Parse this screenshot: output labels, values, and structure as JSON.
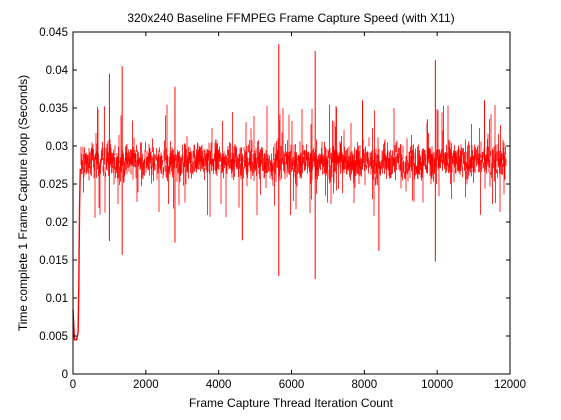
{
  "chart_data": {
    "type": "line",
    "title": "320x240 Baseline FFMPEG Frame Capture Speed (with X11)",
    "xlabel": "Frame Capture Thread Iteration Count",
    "ylabel": "Time complete 1 Frame Capture loop (Seconds)",
    "xlim": [
      0,
      12000
    ],
    "ylim": [
      0,
      0.045
    ],
    "xticks": [
      "0",
      "2000",
      "4000",
      "6000",
      "8000",
      "10000",
      "12000"
    ],
    "xtick_values": [
      0,
      2000,
      4000,
      6000,
      8000,
      10000,
      12000
    ],
    "yticks": [
      "0",
      "0.005",
      "0.01",
      "0.015",
      "0.02",
      "0.025",
      "0.03",
      "0.035",
      "0.04",
      "0.045"
    ],
    "ytick_values": [
      0,
      0.005,
      0.01,
      0.015,
      0.02,
      0.025,
      0.03,
      0.035,
      0.04,
      0.045
    ],
    "grid": false,
    "series": [
      {
        "color": "#ff0000",
        "n_points": 11900,
        "typical_range": [
          0.025,
          0.031
        ],
        "startup": [
          {
            "x": 0,
            "y": 0.0085
          },
          {
            "x": 40,
            "y": 0.0045
          },
          {
            "x": 100,
            "y": 0.0045
          },
          {
            "x": 140,
            "y": 0.0055
          },
          {
            "x": 160,
            "y": 0.012
          },
          {
            "x": 180,
            "y": 0.022
          },
          {
            "x": 200,
            "y": 0.027
          }
        ],
        "spikes_high": [
          {
            "x": 1000,
            "y": 0.0395
          },
          {
            "x": 1350,
            "y": 0.0405
          },
          {
            "x": 2800,
            "y": 0.0378
          },
          {
            "x": 5650,
            "y": 0.0434
          },
          {
            "x": 6650,
            "y": 0.0425
          },
          {
            "x": 9950,
            "y": 0.0413
          },
          {
            "x": 7950,
            "y": 0.036
          },
          {
            "x": 11300,
            "y": 0.036
          }
        ],
        "spikes_low": [
          {
            "x": 1000,
            "y": 0.0175
          },
          {
            "x": 1350,
            "y": 0.0157
          },
          {
            "x": 2800,
            "y": 0.0173
          },
          {
            "x": 4650,
            "y": 0.0176
          },
          {
            "x": 5650,
            "y": 0.0129
          },
          {
            "x": 6650,
            "y": 0.0125
          },
          {
            "x": 8400,
            "y": 0.0162
          },
          {
            "x": 9950,
            "y": 0.0148
          }
        ]
      }
    ]
  }
}
